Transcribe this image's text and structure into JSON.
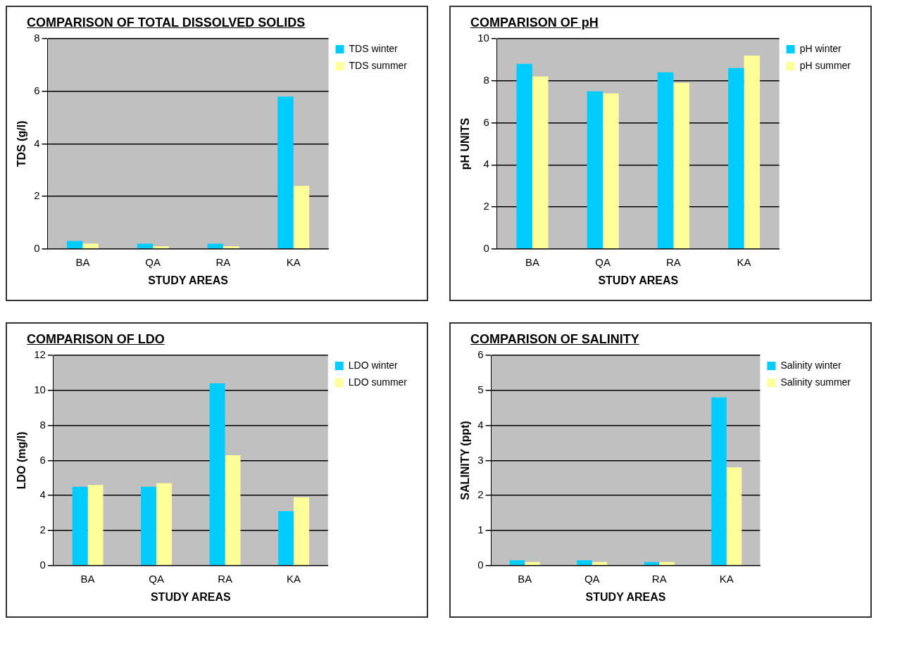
{
  "chart_data": [
    {
      "type": "bar",
      "title": "COMPARISON OF TOTAL DISSOLVED SOLIDS",
      "xlabel": "STUDY AREAS",
      "ylabel": "TDS (g/l)",
      "categories": [
        "BA",
        "QA",
        "RA",
        "KA"
      ],
      "series": [
        {
          "name": "TDS winter",
          "color": "#00ccff",
          "values": [
            0.3,
            0.2,
            0.2,
            5.8
          ]
        },
        {
          "name": "TDS summer",
          "color": "#ffff99",
          "values": [
            0.2,
            0.1,
            0.1,
            2.4
          ]
        }
      ],
      "ylim": [
        0,
        8
      ],
      "yticks": [
        0,
        2,
        4,
        6,
        8
      ],
      "grid": "y",
      "legend": "top right"
    },
    {
      "type": "bar",
      "title": "COMPARISON OF pH",
      "xlabel": "STUDY AREAS",
      "ylabel": "pH UNITS",
      "categories": [
        "BA",
        "QA",
        "RA",
        "KA"
      ],
      "series": [
        {
          "name": "pH winter",
          "color": "#00ccff",
          "values": [
            8.8,
            7.5,
            8.4,
            8.6
          ]
        },
        {
          "name": "pH summer",
          "color": "#ffff99",
          "values": [
            8.2,
            7.4,
            7.9,
            9.2
          ]
        }
      ],
      "ylim": [
        0,
        10
      ],
      "yticks": [
        0,
        2,
        4,
        6,
        8,
        10
      ],
      "grid": "y",
      "legend": "top right"
    },
    {
      "type": "bar",
      "title": "COMPARISON OF LDO",
      "xlabel": "STUDY AREAS",
      "ylabel": "LDO (mg/l)",
      "categories": [
        "BA",
        "QA",
        "RA",
        "KA"
      ],
      "series": [
        {
          "name": "LDO winter",
          "color": "#00ccff",
          "values": [
            4.5,
            4.5,
            10.4,
            3.1
          ]
        },
        {
          "name": "LDO summer",
          "color": "#ffff99",
          "values": [
            4.6,
            4.7,
            6.3,
            3.9
          ]
        }
      ],
      "ylim": [
        0,
        12
      ],
      "yticks": [
        0,
        2,
        4,
        6,
        8,
        10,
        12
      ],
      "grid": "y",
      "legend": "top right"
    },
    {
      "type": "bar",
      "title": "COMPARISON OF SALINITY",
      "xlabel": "STUDY AREAS",
      "ylabel": "SALINITY (ppt)",
      "categories": [
        "BA",
        "QA",
        "RA",
        "KA"
      ],
      "series": [
        {
          "name": "Salinity winter",
          "color": "#00ccff",
          "values": [
            0.15,
            0.15,
            0.1,
            4.8
          ]
        },
        {
          "name": "Salinity summer",
          "color": "#ffff99",
          "values": [
            0.1,
            0.1,
            0.1,
            2.8
          ]
        }
      ],
      "ylim": [
        0,
        6
      ],
      "yticks": [
        0,
        1,
        2,
        3,
        4,
        5,
        6
      ],
      "grid": "y",
      "legend": "top right"
    }
  ]
}
